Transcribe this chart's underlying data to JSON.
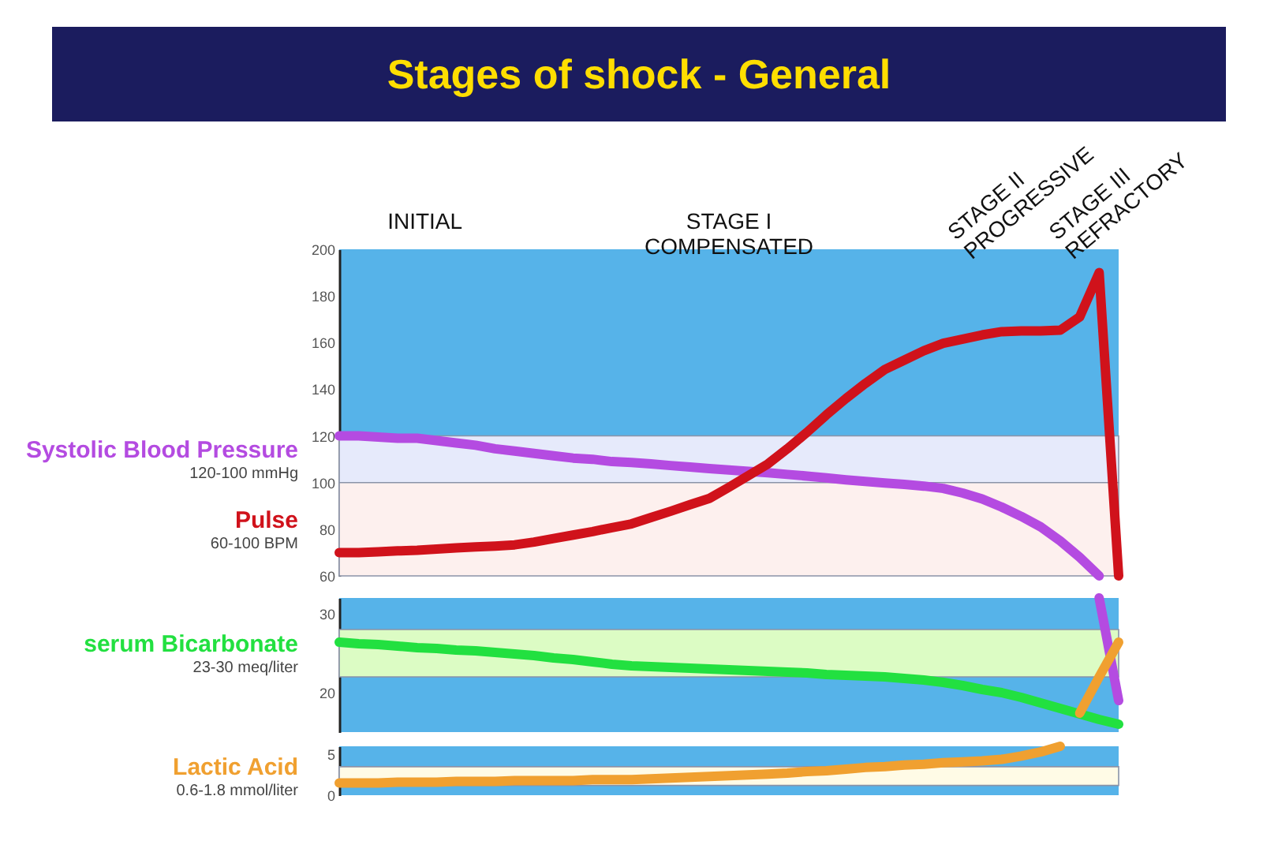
{
  "chart_data": [
    {
      "type": "line",
      "title": "Stages of shock - General",
      "ylim": [
        60,
        200
      ],
      "yticks": [
        60,
        80,
        100,
        120,
        140,
        160,
        180,
        200
      ],
      "tick_labels": "y",
      "grid": false,
      "categories": [
        null,
        null,
        null,
        null,
        null,
        null,
        null,
        null,
        null,
        null,
        null,
        null,
        null,
        null,
        null,
        null,
        null,
        null,
        null,
        null,
        null,
        null,
        null,
        null,
        null,
        null,
        null,
        null,
        null,
        null,
        null,
        null,
        null,
        null,
        null,
        null,
        null,
        null,
        null,
        null,
        null
      ],
      "annotations": [
        "INITIAL",
        "STAGE I\nCOMPENSATED",
        "STAGE II\nPROGRESSIVE",
        "STAGE III\nREFRACTORY"
      ],
      "bands": [
        {
          "axis": "y",
          "from": 100,
          "to": 120,
          "label": "120-100 mmHg",
          "color": "#e6eafb"
        },
        {
          "axis": "y",
          "from": 60,
          "to": 100,
          "label": "60-100 BPM",
          "color": "#fdf0ee"
        }
      ],
      "series": [
        {
          "name": "Systolic Blood Pressure",
          "color": "#b44be1",
          "values": [
            120,
            120,
            119.5,
            119,
            119,
            118,
            117,
            116,
            114.5,
            113.5,
            112.5,
            111.5,
            110.5,
            110,
            109,
            108.6,
            108,
            107.3,
            106.7,
            106,
            105.4,
            104.8,
            104.2,
            103.5,
            102.8,
            102,
            101.2,
            100.5,
            99.8,
            99.2,
            98.5,
            97.5,
            95.5,
            93,
            89.5,
            85.5,
            81,
            75,
            68,
            60,
            null
          ]
        },
        {
          "name": "Pulse",
          "color": "#d0121b",
          "values": [
            70,
            70,
            70.3,
            70.7,
            71,
            71.5,
            72,
            72.4,
            72.8,
            73.3,
            74.5,
            76,
            77.5,
            79,
            80.7,
            82.3,
            85,
            87.7,
            90.5,
            93.2,
            98,
            103,
            108,
            114.5,
            121.5,
            129,
            136,
            142.5,
            148.5,
            152.5,
            156.5,
            159.7,
            161.5,
            163.3,
            164.7,
            165,
            165,
            165.3,
            171,
            190,
            60
          ]
        }
      ]
    },
    {
      "type": "line",
      "ylim": [
        15,
        32
      ],
      "yticks": [
        20,
        30
      ],
      "tick_labels": "y",
      "grid": false,
      "categories": [
        null,
        null,
        null,
        null,
        null,
        null,
        null,
        null,
        null,
        null,
        null,
        null,
        null,
        null,
        null,
        null,
        null,
        null,
        null,
        null,
        null,
        null,
        null,
        null,
        null,
        null,
        null,
        null,
        null,
        null,
        null,
        null,
        null,
        null,
        null,
        null,
        null,
        null,
        null,
        null,
        null
      ],
      "bands": [
        {
          "axis": "y",
          "from": 22,
          "to": 28,
          "label": "23-30 meq/liter",
          "color": "#dcfcc4"
        }
      ],
      "series": [
        {
          "name": "serum Bicarbonate",
          "color": "#22e040",
          "values": [
            26.4,
            26.2,
            26.1,
            25.9,
            25.7,
            25.6,
            25.4,
            25.3,
            25.1,
            24.9,
            24.7,
            24.4,
            24.2,
            23.9,
            23.6,
            23.4,
            23.3,
            23.2,
            23.1,
            23,
            22.9,
            22.8,
            22.7,
            22.6,
            22.5,
            22.3,
            22.2,
            22.1,
            22,
            21.8,
            21.6,
            21.3,
            20.9,
            20.4,
            20,
            19.4,
            18.7,
            18,
            17.3,
            16.6,
            16
          ]
        },
        {
          "color": "#b44be1",
          "values": [
            null,
            null,
            null,
            null,
            null,
            null,
            null,
            null,
            null,
            null,
            null,
            null,
            null,
            null,
            null,
            null,
            null,
            null,
            null,
            null,
            null,
            null,
            null,
            null,
            null,
            null,
            null,
            null,
            null,
            null,
            null,
            null,
            null,
            null,
            null,
            null,
            null,
            null,
            null,
            32,
            19
          ]
        },
        {
          "color": "#f0a030",
          "values": [
            null,
            null,
            null,
            null,
            null,
            null,
            null,
            null,
            null,
            null,
            null,
            null,
            null,
            null,
            null,
            null,
            null,
            null,
            null,
            null,
            null,
            null,
            null,
            null,
            null,
            null,
            null,
            null,
            null,
            null,
            null,
            null,
            null,
            null,
            null,
            null,
            null,
            null,
            17.4,
            22,
            26.4
          ]
        }
      ]
    },
    {
      "type": "line",
      "ylim": [
        0,
        6
      ],
      "yticks": [
        0,
        5
      ],
      "tick_labels": "y",
      "grid": false,
      "categories": [
        null,
        null,
        null,
        null,
        null,
        null,
        null,
        null,
        null,
        null,
        null,
        null,
        null,
        null,
        null,
        null,
        null,
        null,
        null,
        null,
        null,
        null,
        null,
        null,
        null,
        null,
        null,
        null,
        null,
        null,
        null,
        null,
        null,
        null,
        null,
        null,
        null,
        null,
        null,
        null,
        null
      ],
      "bands": [
        {
          "axis": "y",
          "from": 1.2,
          "to": 3.5,
          "label": "0.6-1.8 mmol/liter",
          "color": "#fffbe6"
        }
      ],
      "series": [
        {
          "name": "Lactic Acid",
          "color": "#f0a030",
          "values": [
            1.5,
            1.5,
            1.5,
            1.6,
            1.6,
            1.6,
            1.7,
            1.7,
            1.7,
            1.8,
            1.8,
            1.8,
            1.8,
            1.9,
            1.9,
            1.9,
            2,
            2.1,
            2.2,
            2.3,
            2.4,
            2.5,
            2.6,
            2.7,
            2.9,
            3,
            3.2,
            3.4,
            3.5,
            3.7,
            3.8,
            4,
            4.1,
            4.2,
            4.4,
            4.8,
            5.3,
            6,
            null,
            null,
            null
          ]
        }
      ]
    }
  ]
}
